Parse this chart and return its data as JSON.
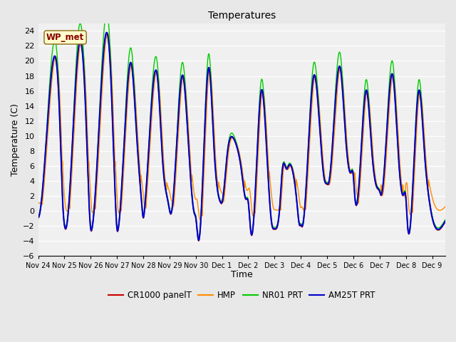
{
  "title": "Temperatures",
  "xlabel": "Time",
  "ylabel": "Temperature (C)",
  "ylim": [
    -6,
    25
  ],
  "yticks": [
    -6,
    -4,
    -2,
    0,
    2,
    4,
    6,
    8,
    10,
    12,
    14,
    16,
    18,
    20,
    22,
    24
  ],
  "annotation_text": "WP_met",
  "annotation_color": "#8B0000",
  "annotation_bg": "#FFFFCC",
  "annotation_border": "#8B6914",
  "bg_color": "#E8E8E8",
  "plot_bg": "#F0F0F0",
  "line_colors": {
    "CR1000 panelT": "#CC0000",
    "HMP": "#FF8C00",
    "NR01 PRT": "#00CC00",
    "AM25T PRT": "#0000CC"
  },
  "line_widths": {
    "CR1000 panelT": 1.0,
    "HMP": 1.0,
    "NR01 PRT": 1.0,
    "AM25T PRT": 1.5
  },
  "xtick_labels": [
    "Nov 24",
    "Nov 25",
    "Nov 26",
    "Nov 27",
    "Nov 28",
    "Nov 29",
    "Nov 30",
    "Dec 1",
    "Dec 2",
    "Dec 3",
    "Dec 4",
    "Dec 5",
    "Dec 6",
    "Dec 7",
    "Dec 8",
    "Dec 9"
  ],
  "figsize": [
    6.4,
    4.8
  ],
  "dpi": 100
}
